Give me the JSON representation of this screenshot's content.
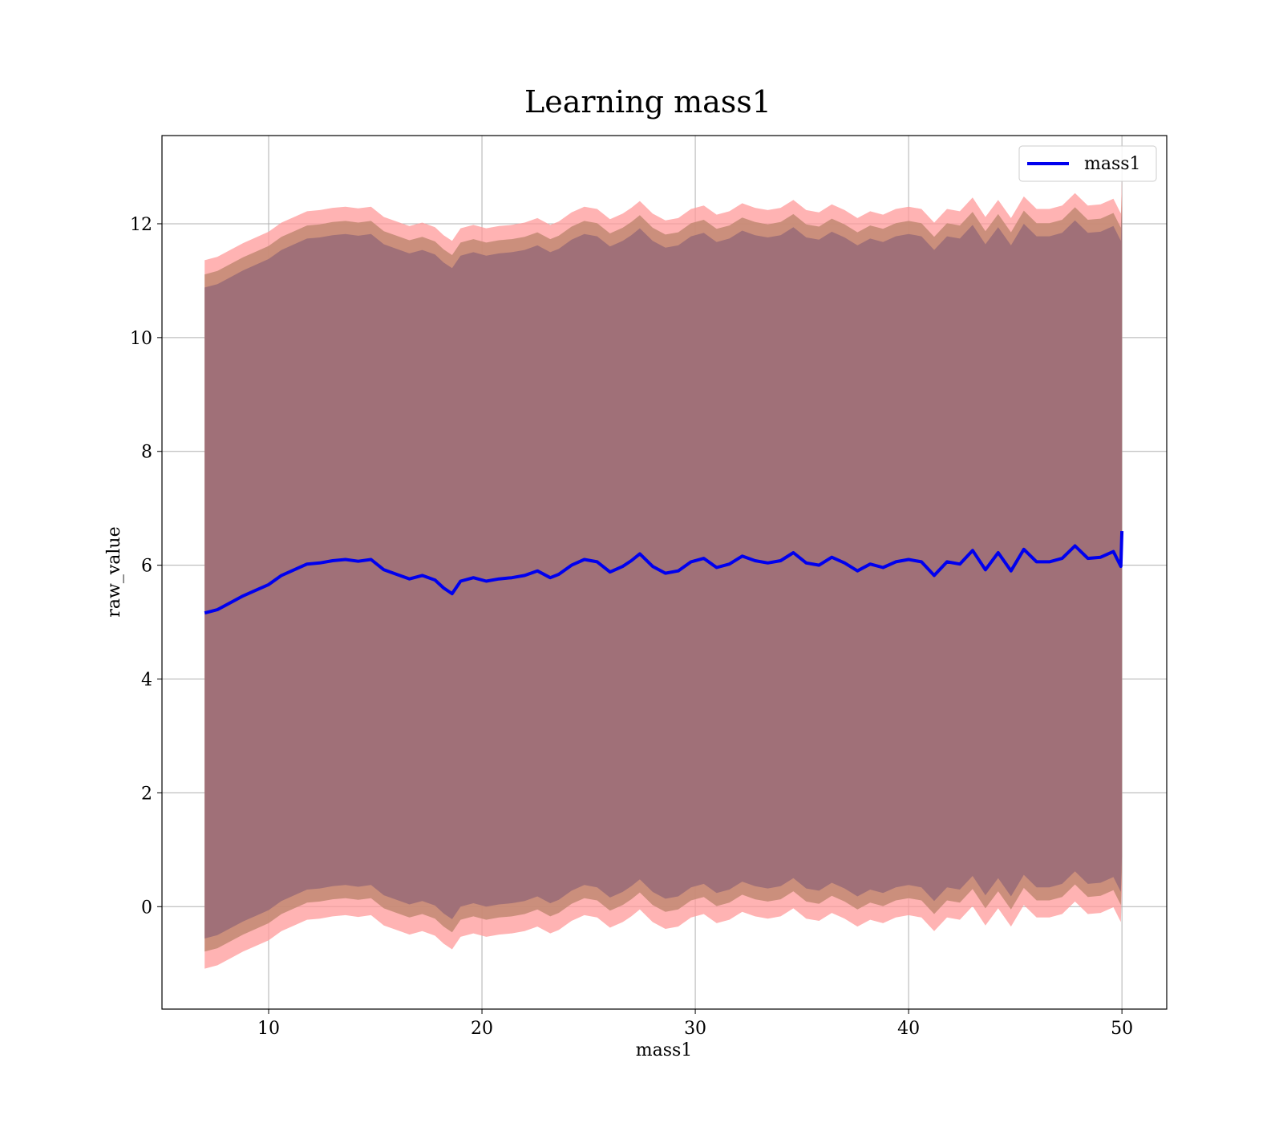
{
  "chart_data": {
    "type": "line",
    "title": "Learning mass1",
    "xlabel": "mass1",
    "ylabel": "raw_value",
    "xlim": [
      5,
      52.1
    ],
    "ylim": [
      -1.8,
      13.55
    ],
    "xticks": [
      10,
      20,
      30,
      40,
      50
    ],
    "yticks": [
      0,
      2,
      4,
      6,
      8,
      10,
      12
    ],
    "grid": true,
    "legend_position": "top-right",
    "colors": {
      "line": "#0000ee",
      "band_outer": "#ff9999",
      "band_middle": "#c28872",
      "band_inner": "#a07078",
      "grid": "#b0b0b0"
    },
    "series": [
      {
        "name": "mass1",
        "x": [
          7.0,
          7.6,
          8.2,
          8.8,
          9.4,
          10.0,
          10.6,
          11.2,
          11.8,
          12.4,
          13.0,
          13.6,
          14.2,
          14.8,
          15.4,
          16.0,
          16.6,
          17.2,
          17.8,
          18.2,
          18.6,
          19.0,
          19.6,
          20.2,
          20.8,
          21.4,
          22.0,
          22.6,
          23.2,
          23.6,
          24.2,
          24.8,
          25.4,
          26.0,
          26.6,
          27.0,
          27.4,
          28.0,
          28.6,
          29.2,
          29.8,
          30.4,
          31.0,
          31.6,
          32.2,
          32.8,
          33.4,
          34.0,
          34.6,
          35.2,
          35.8,
          36.4,
          37.0,
          37.6,
          38.2,
          38.8,
          39.4,
          40.0,
          40.6,
          41.2,
          41.8,
          42.4,
          43.0,
          43.6,
          44.2,
          44.8,
          45.4,
          46.0,
          46.6,
          47.2,
          47.8,
          48.4,
          49.0,
          49.6,
          49.95,
          50.0
        ],
        "y": [
          5.16,
          5.22,
          5.34,
          5.46,
          5.56,
          5.66,
          5.82,
          5.92,
          6.02,
          6.04,
          6.08,
          6.1,
          6.07,
          6.1,
          5.92,
          5.84,
          5.76,
          5.82,
          5.74,
          5.6,
          5.5,
          5.72,
          5.78,
          5.72,
          5.76,
          5.78,
          5.82,
          5.9,
          5.78,
          5.84,
          6.0,
          6.1,
          6.06,
          5.88,
          5.98,
          6.08,
          6.2,
          5.98,
          5.86,
          5.9,
          6.06,
          6.12,
          5.96,
          6.02,
          6.16,
          6.08,
          6.04,
          6.08,
          6.22,
          6.04,
          6.0,
          6.14,
          6.04,
          5.9,
          6.02,
          5.96,
          6.06,
          6.1,
          6.06,
          5.82,
          6.06,
          6.02,
          6.26,
          5.92,
          6.22,
          5.9,
          6.28,
          6.06,
          6.06,
          6.12,
          6.34,
          6.12,
          6.14,
          6.24,
          5.98,
          6.6
        ]
      }
    ]
  }
}
